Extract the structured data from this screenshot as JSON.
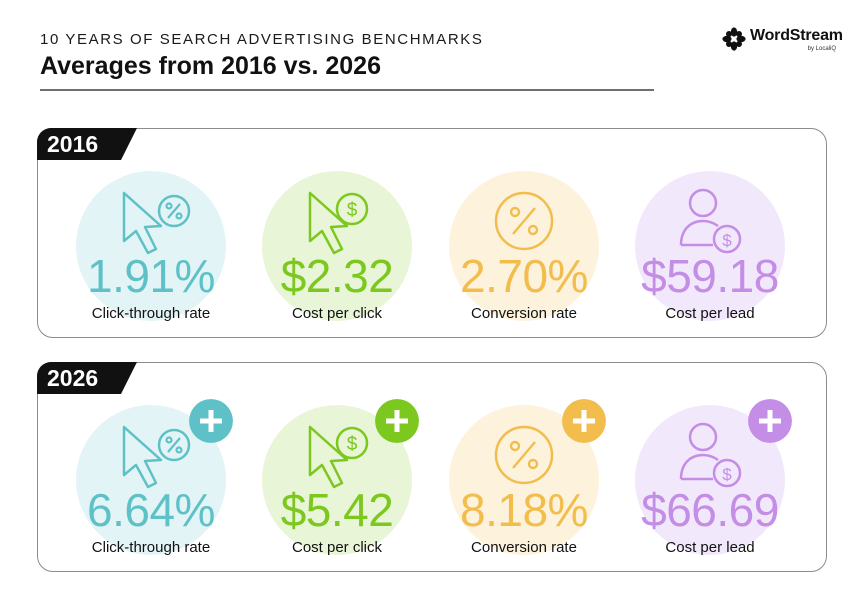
{
  "header": {
    "eyebrow": "10 YEARS OF SEARCH ADVERTISING BENCHMARKS",
    "title": "Averages from 2016 vs. 2026"
  },
  "logo": {
    "name": "WordStream",
    "sub": "by LocaliQ"
  },
  "colors": {
    "teal": "#5fc1c8",
    "teal_bg": "#e2f4f5",
    "green": "#7cc81e",
    "green_bg": "#e8f5d6",
    "yellow": "#f2bd4c",
    "yellow_bg": "#fdf2dc",
    "purple": "#c48de6",
    "purple_bg": "#f2e8fb"
  },
  "panels": [
    {
      "year": "2016",
      "metrics": [
        {
          "value": "1.91%",
          "label": "Click-through rate",
          "icon": "cursor-percent-icon"
        },
        {
          "value": "$2.32",
          "label": "Cost per click",
          "icon": "cursor-dollar-icon"
        },
        {
          "value": "2.70%",
          "label": "Conversion rate",
          "icon": "percent-circle-icon"
        },
        {
          "value": "$59.18",
          "label": "Cost per lead",
          "icon": "person-dollar-icon"
        }
      ]
    },
    {
      "year": "2026",
      "metrics": [
        {
          "value": "6.64%",
          "label": "Click-through rate",
          "icon": "cursor-percent-icon",
          "badge": "plus-icon"
        },
        {
          "value": "$5.42",
          "label": "Cost per click",
          "icon": "cursor-dollar-icon",
          "badge": "plus-icon"
        },
        {
          "value": "8.18%",
          "label": "Conversion rate",
          "icon": "percent-circle-icon",
          "badge": "plus-icon"
        },
        {
          "value": "$66.69",
          "label": "Cost per lead",
          "icon": "person-dollar-icon",
          "badge": "plus-icon"
        }
      ]
    }
  ]
}
